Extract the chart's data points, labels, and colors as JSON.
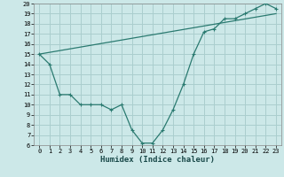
{
  "xlabel": "Humidex (Indice chaleur)",
  "background_color": "#cce8e8",
  "grid_color": "#aacece",
  "line_color": "#2a7a70",
  "xlim": [
    -0.5,
    23.5
  ],
  "ylim": [
    6,
    20
  ],
  "xticks": [
    0,
    1,
    2,
    3,
    4,
    5,
    6,
    7,
    8,
    9,
    10,
    11,
    12,
    13,
    14,
    15,
    16,
    17,
    18,
    19,
    20,
    21,
    22,
    23
  ],
  "yticks": [
    6,
    7,
    8,
    9,
    10,
    11,
    12,
    13,
    14,
    15,
    16,
    17,
    18,
    19,
    20
  ],
  "curve1_x": [
    0,
    1,
    2,
    3,
    4,
    5,
    6,
    7,
    8,
    9,
    10,
    11,
    12,
    13,
    14,
    15,
    16,
    17,
    18,
    19,
    20,
    21,
    22,
    23
  ],
  "curve1_y": [
    15,
    14,
    11,
    11,
    10,
    10,
    10,
    9.5,
    10,
    7.5,
    6.2,
    6.2,
    7.5,
    9.5,
    12,
    15,
    17.2,
    17.5,
    18.5,
    18.5,
    19,
    19.5,
    20,
    19.5
  ],
  "curve2_x": [
    0,
    23
  ],
  "curve2_y": [
    15,
    19
  ],
  "xlabel_fontsize": 6.5,
  "tick_fontsize": 5.0
}
